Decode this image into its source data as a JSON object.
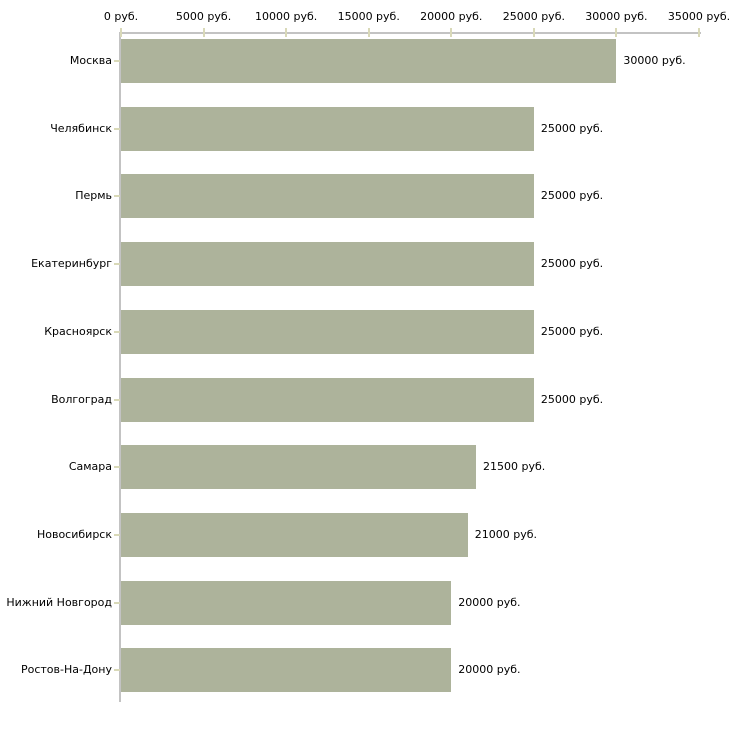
{
  "chart_data": {
    "type": "bar",
    "orientation": "horizontal",
    "title": "",
    "xlabel": "",
    "ylabel": "",
    "unit": "руб.",
    "categories": [
      "Москва",
      "Челябинск",
      "Пермь",
      "Екатеринбург",
      "Красноярск",
      "Волгоград",
      "Самара",
      "Новосибирск",
      "Нижний Новгород",
      "Ростов-На-Дону"
    ],
    "values": [
      30000,
      25000,
      25000,
      25000,
      25000,
      25000,
      21500,
      21000,
      20000,
      20000
    ],
    "value_labels": [
      "30000 руб.",
      "25000 руб.",
      "25000 руб.",
      "25000 руб.",
      "25000 руб.",
      "25000 руб.",
      "21500 руб.",
      "21000 руб.",
      "20000 руб.",
      "20000 руб."
    ],
    "x_ticks": [
      0,
      5000,
      10000,
      15000,
      20000,
      25000,
      30000,
      35000
    ],
    "x_tick_labels": [
      "0 руб.",
      "5000 руб.",
      "10000 руб.",
      "15000 руб.",
      "20000 руб.",
      "25000 руб.",
      "30000 руб.",
      "35000 руб."
    ],
    "xlim": [
      0,
      35000
    ],
    "grid": false,
    "legend": null,
    "colors": {
      "bar": "#adb39b",
      "axis": "#c3c3c3",
      "tick": "#d9d9b8",
      "text": "#000000",
      "background": "#ffffff"
    }
  }
}
